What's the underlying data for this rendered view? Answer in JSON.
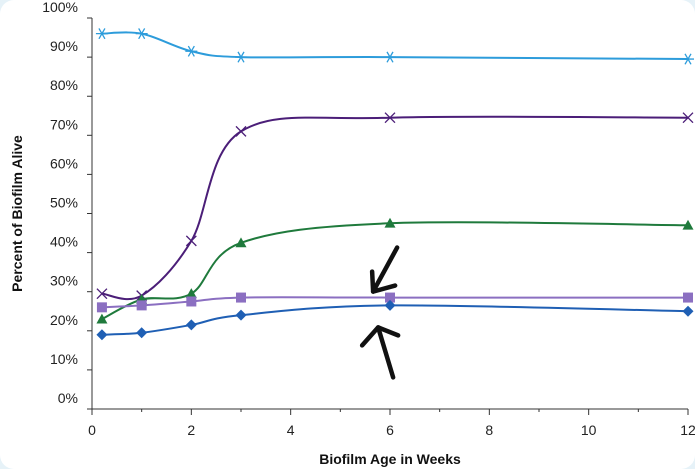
{
  "chart_data": {
    "type": "line",
    "title": "",
    "xlabel": "Biofilm Age in Weeks",
    "ylabel": "Percent of Biofilm Alive",
    "xlim": [
      0,
      12
    ],
    "ylim": [
      0,
      100
    ],
    "x_tick_labels": [
      "0",
      "2",
      "4",
      "6",
      "8",
      "10",
      "12"
    ],
    "y_tick_labels": [
      "0%",
      "10%",
      "20%",
      "30%",
      "40%",
      "50%",
      "60%",
      "70%",
      "80%",
      "90%",
      "100%"
    ],
    "grid": false,
    "legend": "none",
    "series": [
      {
        "color": "#2d9cdb",
        "marker": "asterisk",
        "x": [
          0.2,
          1,
          2,
          3,
          6,
          12
        ],
        "values": [
          96,
          96,
          91.5,
          90,
          90,
          89.5
        ]
      },
      {
        "color": "#4b1e78",
        "marker": "x",
        "x": [
          0.2,
          1,
          2,
          3,
          6,
          12
        ],
        "values": [
          29.5,
          29,
          43,
          71,
          74.5,
          74.5
        ]
      },
      {
        "color": "#1f7a3c",
        "marker": "triangle",
        "x": [
          0.2,
          1,
          2,
          3,
          6,
          12
        ],
        "values": [
          23,
          28,
          29.5,
          42.5,
          47.5,
          47
        ]
      },
      {
        "color": "#8b6fc1",
        "marker": "square",
        "x": [
          0.2,
          1,
          2,
          3,
          6,
          12
        ],
        "values": [
          26,
          26.5,
          27.5,
          28.5,
          28.5,
          28.5
        ]
      },
      {
        "color": "#1f5fb4",
        "marker": "diamond",
        "x": [
          0.2,
          1,
          2,
          3,
          6,
          12
        ],
        "values": [
          19,
          19.5,
          21.5,
          24,
          26.5,
          25
        ]
      }
    ],
    "annotations": [
      {
        "type": "arrow",
        "direction": "down-left",
        "points_to": {
          "x": 5.6,
          "y": 28.5
        }
      },
      {
        "type": "arrow",
        "direction": "up-left",
        "points_to": {
          "x": 5.6,
          "y": 26.5
        }
      }
    ]
  }
}
